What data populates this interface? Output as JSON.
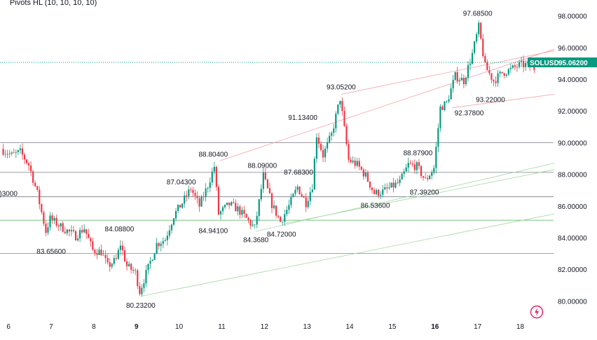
{
  "indicator": {
    "title": "Pivots HL (10, 10, 10, 10)"
  },
  "symbol": {
    "name": "SOLUSD",
    "price_label": "95.06200",
    "color_tag": "#089981"
  },
  "colors": {
    "up": "#089981",
    "down": "#f23645",
    "pivot_line": "#787b86",
    "support_line": "#4caf50",
    "channel_upper": "#f7a1aa",
    "channel_lower": "#a5d6a7",
    "price_dotted": "#089981",
    "logo": "#e91e63"
  },
  "chart_data": {
    "type": "candlestick",
    "x_ticks": [
      "6",
      "7",
      "8",
      "9",
      "10",
      "11",
      "12",
      "13",
      "14",
      "15",
      "16",
      "17",
      "18"
    ],
    "x_ticks_bold": [
      "9",
      "16"
    ],
    "y_ticks": [
      "98.00000",
      "96.00000",
      "94.00000",
      "92.00000",
      "90.00000",
      "88.00000",
      "86.00000",
      "84.00000",
      "82.00000",
      "80.00000"
    ],
    "ylim": [
      79.0,
      99.0
    ],
    "current_price": 95.062,
    "horizontal_levels": [
      {
        "value": 90.0,
        "kind": "pivot"
      },
      {
        "value": 88.12,
        "kind": "pivot"
      },
      {
        "value": 86.58,
        "kind": "pivot"
      },
      {
        "value": 85.1,
        "kind": "support"
      },
      {
        "value": 83.0,
        "kind": "support"
      }
    ],
    "pivot_labels": [
      {
        "text": "97.68500",
        "x": 17.0,
        "y": 97.685,
        "pos": "above"
      },
      {
        "text": "93.05200",
        "x": 13.8,
        "y": 93.052,
        "pos": "above"
      },
      {
        "text": "93.22000",
        "x": 17.3,
        "y": 93.22,
        "pos": "below"
      },
      {
        "text": "92.37800",
        "x": 16.8,
        "y": 92.378,
        "pos": "below"
      },
      {
        "text": "91.13400",
        "x": 12.9,
        "y": 91.134,
        "pos": "above"
      },
      {
        "text": "88.87900",
        "x": 15.6,
        "y": 88.879,
        "pos": "above"
      },
      {
        "text": "88.80400",
        "x": 10.8,
        "y": 88.804,
        "pos": "above"
      },
      {
        "text": "88.09000",
        "x": 11.95,
        "y": 88.09,
        "pos": "above"
      },
      {
        "text": "87.68300",
        "x": 12.8,
        "y": 87.683,
        "pos": "above"
      },
      {
        "text": "87.04300",
        "x": 10.05,
        "y": 87.043,
        "pos": "above"
      },
      {
        "text": "87.39200",
        "x": 15.75,
        "y": 87.392,
        "pos": "below"
      },
      {
        "text": "86.53600",
        "x": 14.6,
        "y": 86.536,
        "pos": "below"
      },
      {
        "text": "84.08800",
        "x": 8.6,
        "y": 84.088,
        "pos": "above"
      },
      {
        "text": "84.94100",
        "x": 10.8,
        "y": 84.941,
        "pos": "below"
      },
      {
        "text": "84.72000",
        "x": 12.4,
        "y": 84.72,
        "pos": "below"
      },
      {
        "text": "84.3680",
        "x": 11.8,
        "y": 84.368,
        "pos": "below"
      },
      {
        "text": "83.65600",
        "x": 7.0,
        "y": 83.656,
        "pos": "below"
      },
      {
        "text": "80.23200",
        "x": 9.1,
        "y": 80.232,
        "pos": "below"
      },
      {
        "text": ")3000",
        "x": 6.0,
        "y": 87.3,
        "pos": "below"
      }
    ],
    "trend_lines": [
      {
        "from": [
          10.95,
          88.85
        ],
        "to": [
          18.8,
          95.9
        ],
        "kind": "channel_upper"
      },
      {
        "from": [
          13.8,
          93.05
        ],
        "to": [
          18.8,
          95.8
        ],
        "kind": "channel_upper"
      },
      {
        "from": [
          16.4,
          92.2
        ],
        "to": [
          18.8,
          93.05
        ],
        "kind": "channel_upper"
      },
      {
        "from": [
          11.8,
          84.4
        ],
        "to": [
          18.8,
          88.7
        ],
        "kind": "channel_lower"
      },
      {
        "from": [
          12.5,
          84.9
        ],
        "to": [
          18.8,
          88.3
        ],
        "kind": "channel_lower"
      },
      {
        "from": [
          9.1,
          80.3
        ],
        "to": [
          18.8,
          85.5
        ],
        "kind": "channel_lower"
      }
    ],
    "ohlc_anchor_path": [
      [
        5.85,
        89.6
      ],
      [
        6.1,
        89.2
      ],
      [
        6.3,
        89.4
      ],
      [
        6.5,
        88.6
      ],
      [
        6.7,
        86.8
      ],
      [
        6.9,
        84.4
      ],
      [
        7.0,
        85.2
      ],
      [
        7.3,
        84.6
      ],
      [
        7.6,
        84.1
      ],
      [
        7.8,
        84.6
      ],
      [
        8.0,
        83.2
      ],
      [
        8.2,
        83.1
      ],
      [
        8.35,
        82.2
      ],
      [
        8.55,
        82.6
      ],
      [
        8.65,
        83.6
      ],
      [
        8.8,
        82.2
      ],
      [
        9.0,
        81.8
      ],
      [
        9.1,
        80.6
      ],
      [
        9.3,
        82.1
      ],
      [
        9.5,
        83.6
      ],
      [
        9.7,
        83.9
      ],
      [
        9.9,
        85.4
      ],
      [
        10.1,
        86.2
      ],
      [
        10.3,
        87.1
      ],
      [
        10.5,
        86.0
      ],
      [
        10.7,
        87.3
      ],
      [
        10.85,
        88.5
      ],
      [
        10.95,
        85.5
      ],
      [
        11.2,
        86.1
      ],
      [
        11.4,
        85.8
      ],
      [
        11.6,
        85.2
      ],
      [
        11.8,
        84.6
      ],
      [
        12.0,
        87.9
      ],
      [
        12.2,
        86.1
      ],
      [
        12.4,
        85.0
      ],
      [
        12.6,
        86.0
      ],
      [
        12.8,
        87.2
      ],
      [
        13.0,
        86.2
      ],
      [
        13.15,
        87.3
      ],
      [
        13.25,
        90.5
      ],
      [
        13.4,
        89.2
      ],
      [
        13.6,
        90.5
      ],
      [
        13.8,
        92.8
      ],
      [
        14.0,
        88.9
      ],
      [
        14.2,
        88.6
      ],
      [
        14.4,
        87.9
      ],
      [
        14.6,
        86.8
      ],
      [
        14.8,
        86.9
      ],
      [
        15.0,
        87.2
      ],
      [
        15.2,
        87.5
      ],
      [
        15.4,
        88.6
      ],
      [
        15.6,
        88.5
      ],
      [
        15.8,
        87.6
      ],
      [
        16.0,
        88.4
      ],
      [
        16.15,
        92.2
      ],
      [
        16.3,
        92.5
      ],
      [
        16.5,
        94.2
      ],
      [
        16.7,
        93.9
      ],
      [
        16.9,
        95.6
      ],
      [
        17.05,
        97.3
      ],
      [
        17.2,
        94.8
      ],
      [
        17.4,
        93.9
      ],
      [
        17.6,
        94.4
      ],
      [
        17.8,
        94.6
      ],
      [
        18.0,
        94.9
      ],
      [
        18.2,
        94.9
      ],
      [
        18.35,
        94.7
      ]
    ],
    "x_range": [
      5.8,
      18.78
    ]
  }
}
